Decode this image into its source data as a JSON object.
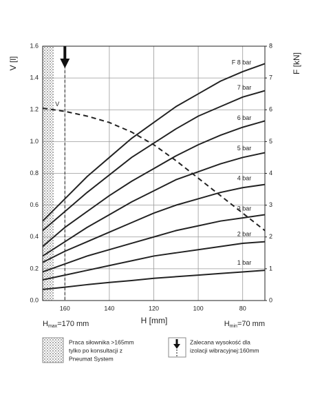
{
  "chart_data": {
    "type": "line",
    "x_title": "H [mm]",
    "y_title": "V [l]",
    "y2_title": "F [kN]",
    "x": [
      170,
      160,
      150,
      140,
      130,
      120,
      110,
      100,
      90,
      80,
      70
    ],
    "xlim": [
      170,
      70
    ],
    "xticks": [
      160,
      140,
      120,
      100,
      80
    ],
    "ylim": [
      0,
      1.6
    ],
    "yticks": [
      {
        "value": 0,
        "label": "0.0"
      },
      0.2,
      0.4,
      0.6,
      0.8,
      {
        "value": 1,
        "label": "1.0"
      },
      1.2,
      1.4,
      1.6
    ],
    "y2lim": [
      0,
      8
    ],
    "y2ticks": [
      0,
      1,
      2,
      3,
      4,
      5,
      6,
      7,
      8
    ],
    "grid": true,
    "series": [
      {
        "name": "8 bar",
        "color": "#222222",
        "axis": "y2",
        "values": [
          2.5,
          3.2,
          3.9,
          4.5,
          5.1,
          5.6,
          6.1,
          6.5,
          6.9,
          7.2,
          7.45
        ]
      },
      {
        "name": "7 bar",
        "color": "#222222",
        "axis": "y2",
        "values": [
          2.2,
          2.8,
          3.4,
          3.95,
          4.5,
          4.95,
          5.4,
          5.8,
          6.1,
          6.4,
          6.6
        ]
      },
      {
        "name": "6 bar",
        "color": "#222222",
        "axis": "y2",
        "values": [
          1.7,
          2.3,
          2.8,
          3.3,
          3.75,
          4.15,
          4.55,
          4.9,
          5.2,
          5.45,
          5.65
        ]
      },
      {
        "name": "5 bar",
        "color": "#222222",
        "axis": "y2",
        "values": [
          1.4,
          1.85,
          2.3,
          2.7,
          3.1,
          3.45,
          3.8,
          4.05,
          4.3,
          4.5,
          4.65
        ]
      },
      {
        "name": "4 bar",
        "color": "#222222",
        "axis": "y2",
        "values": [
          1.2,
          1.55,
          1.85,
          2.15,
          2.45,
          2.75,
          3.0,
          3.2,
          3.4,
          3.55,
          3.65
        ]
      },
      {
        "name": "3 bar",
        "color": "#222222",
        "axis": "y2",
        "values": [
          0.9,
          1.15,
          1.4,
          1.6,
          1.8,
          2.0,
          2.2,
          2.35,
          2.5,
          2.6,
          2.7
        ]
      },
      {
        "name": "2 bar",
        "color": "#222222",
        "axis": "y2",
        "values": [
          0.65,
          0.8,
          0.95,
          1.1,
          1.25,
          1.4,
          1.5,
          1.6,
          1.7,
          1.8,
          1.85
        ]
      },
      {
        "name": "1 bar",
        "color": "#222222",
        "axis": "y2",
        "values": [
          0.35,
          0.42,
          0.5,
          0.57,
          0.63,
          0.7,
          0.75,
          0.8,
          0.85,
          0.9,
          0.95
        ]
      },
      {
        "name": "V",
        "color": "#222222",
        "dashed": true,
        "values": [
          1.21,
          1.19,
          1.16,
          1.12,
          1.06,
          0.98,
          0.88,
          0.77,
          0.66,
          0.55,
          0.44
        ]
      }
    ],
    "f_label": "F",
    "hatch_xlim": [
      170,
      165
    ],
    "recommended_x": 160,
    "x_left_label": [
      "H",
      "max",
      "=170 mm"
    ],
    "x_right_label": [
      "H",
      "min",
      "=70 mm"
    ],
    "legend_hatch_text": [
      "Praca siłownika >165mm",
      "tylko po konsultacji z",
      "Pneumat System"
    ],
    "legend_arrow_text": [
      "Zalecana wysokość dla",
      "izolacji wibracyjnej:160mm"
    ]
  }
}
